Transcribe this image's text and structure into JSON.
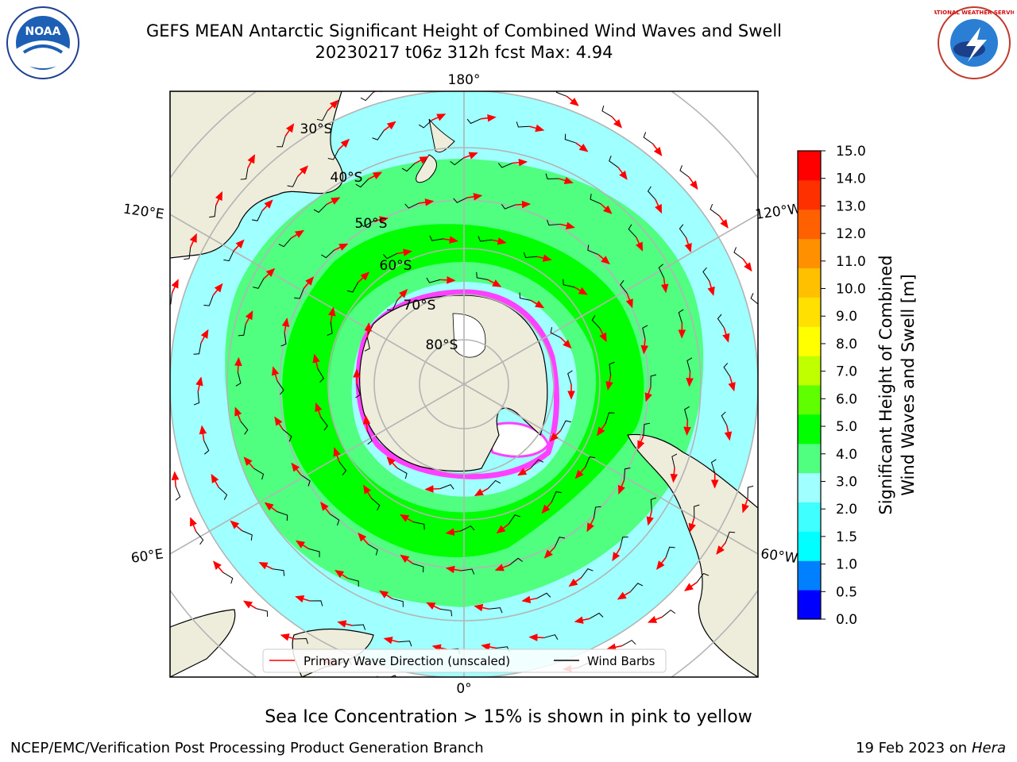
{
  "header": {
    "title_line1": "GEFS MEAN Antarctic Significant Height of Combined Wind Waves and Swell",
    "title_line2": "20230217 t06z 312h fcst   Max: 4.94"
  },
  "logos": {
    "left": "NOAA",
    "right_text": "NATIONAL WEATHER SERVICE"
  },
  "map": {
    "longitude_labels": [
      "180°",
      "120°E",
      "120°W",
      "60°E",
      "60°W",
      "0°"
    ],
    "latitude_labels": [
      "30°S",
      "40°S",
      "50°S",
      "60°S",
      "70°S",
      "80°S"
    ],
    "legend": {
      "wave": "Primary Wave Direction (unscaled)",
      "barbs": "Wind Barbs"
    }
  },
  "colorbar": {
    "label_line1": "Significant Height of Combined",
    "label_line2": "Wind Waves and Swell [m]",
    "ticks": [
      "0.0",
      "0.5",
      "1.0",
      "1.5",
      "2.0",
      "3.0",
      "4.0",
      "5.0",
      "6.0",
      "7.0",
      "8.0",
      "9.0",
      "10.0",
      "11.0",
      "12.0",
      "13.0",
      "14.0",
      "15.0"
    ],
    "colors": [
      "#0000ff",
      "#0080ff",
      "#00ffff",
      "#40ffff",
      "#a0ffff",
      "#50ff80",
      "#00ff00",
      "#60ff00",
      "#c0ff00",
      "#ffff00",
      "#ffe000",
      "#ffc000",
      "#ff9000",
      "#ff6000",
      "#ff3000",
      "#ff0000"
    ]
  },
  "footer": {
    "caption": "Sea Ice Concentration > 15% is shown in pink to yellow",
    "credit": "NCEP/EMC/Verification Post Processing Product Generation Branch",
    "date": "19 Feb 2023 on",
    "host": "Hera"
  }
}
